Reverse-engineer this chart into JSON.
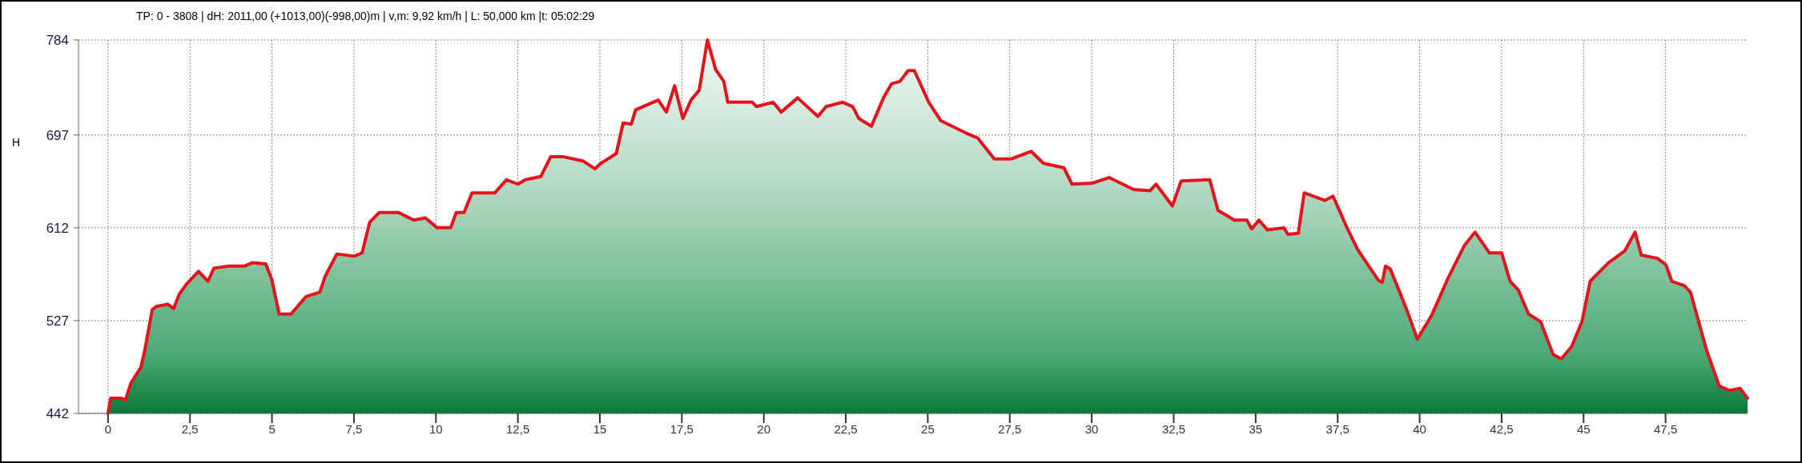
{
  "chart_data": {
    "type": "area",
    "title": "TP: 0 - 3808 | dH: 2011,00  (+1013,00)(-998,00)m | v,m: 9,92 km/h | L: 50,000 km |t: 05:02:29",
    "ylabel": "H",
    "xlim": [
      -0.9,
      50
    ],
    "ylim": [
      442,
      784
    ],
    "xticks": [
      0,
      {
        "value": 2.5,
        "label": "2,5"
      },
      5,
      {
        "value": 7.5,
        "label": "7,5"
      },
      10,
      {
        "value": 12.5,
        "label": "12,5"
      },
      15,
      {
        "value": 17.5,
        "label": "17,5"
      },
      20,
      {
        "value": 22.5,
        "label": "22,5"
      },
      25,
      {
        "value": 27.5,
        "label": "27,5"
      },
      30,
      {
        "value": 32.5,
        "label": "32,5"
      },
      35,
      {
        "value": 37.5,
        "label": "37,5"
      },
      40,
      {
        "value": 42.5,
        "label": "42,5"
      },
      45,
      {
        "value": 47.5,
        "label": "47,5"
      }
    ],
    "yticks": [
      442,
      527,
      612,
      697,
      784
    ],
    "grid": true,
    "series": [
      {
        "color": "#e3141c",
        "x": [
          0,
          0.08,
          0.41,
          0.53,
          0.7,
          1.0,
          1.11,
          1.35,
          1.47,
          1.82,
          2.0,
          2.17,
          2.41,
          2.76,
          3.05,
          3.23,
          3.7,
          4.17,
          4.4,
          4.81,
          4.99,
          5.22,
          5.58,
          6.04,
          6.46,
          6.63,
          6.98,
          7.51,
          7.75,
          7.98,
          8.27,
          8.86,
          9.33,
          9.68,
          10.04,
          10.45,
          10.62,
          10.86,
          11.1,
          11.8,
          12.15,
          12.5,
          12.73,
          13.2,
          13.5,
          13.9,
          14.5,
          14.85,
          15.03,
          15.5,
          15.71,
          15.96,
          16.09,
          16.78,
          17.03,
          17.28,
          17.53,
          17.78,
          18.03,
          18.28,
          18.53,
          18.78,
          18.9,
          19.65,
          19.78,
          20.28,
          20.53,
          21.03,
          21.65,
          21.9,
          22.4,
          22.71,
          22.9,
          23.28,
          23.65,
          23.9,
          24.15,
          24.4,
          24.59,
          25.03,
          25.4,
          26.15,
          26.53,
          27.03,
          27.53,
          28.15,
          28.53,
          29.15,
          29.4,
          30.03,
          30.53,
          31.28,
          31.78,
          31.96,
          32.46,
          32.73,
          33.6,
          33.85,
          34.35,
          34.73,
          34.88,
          35.1,
          35.36,
          35.86,
          35.98,
          36.3,
          36.48,
          37.11,
          37.36,
          37.8,
          38.11,
          38.74,
          38.86,
          38.96,
          39.11,
          39.62,
          39.93,
          40.37,
          40.87,
          41.37,
          41.69,
          42.13,
          42.5,
          42.76,
          43.01,
          43.32,
          43.69,
          44.07,
          44.32,
          44.63,
          44.95,
          45.2,
          45.76,
          46.26,
          46.57,
          46.76,
          47.26,
          47.51,
          47.69,
          48.07,
          48.26,
          48.76,
          49.14,
          49.45,
          49.77,
          50
        ],
        "values": [
          442,
          456,
          456,
          454,
          470,
          484,
          498,
          537,
          540,
          542,
          538,
          551,
          561,
          572,
          563,
          575,
          577,
          577,
          580,
          579,
          565,
          533,
          533,
          549,
          553,
          568,
          588,
          586,
          589,
          617,
          626,
          626,
          619,
          621,
          612,
          612,
          626,
          626,
          644,
          644,
          656,
          652,
          656,
          659,
          677,
          677,
          673,
          666,
          671,
          680,
          708,
          707,
          720,
          729,
          718,
          742,
          712,
          729,
          738,
          784,
          757,
          746,
          727,
          727,
          723,
          727,
          718,
          731,
          714,
          723,
          727,
          723,
          712,
          705,
          731,
          744,
          746,
          756,
          756,
          727,
          710,
          699,
          694,
          675,
          675,
          682,
          671,
          667,
          652,
          653,
          658,
          647,
          646,
          652,
          632,
          655,
          656,
          628,
          619,
          619,
          611,
          619,
          610,
          612,
          606,
          607,
          644,
          637,
          641,
          611,
          592,
          564,
          562,
          577,
          574,
          536,
          510,
          532,
          566,
          596,
          608,
          589,
          589,
          563,
          555,
          533,
          526,
          496,
          492,
          503,
          526,
          563,
          580,
          591,
          608,
          587,
          584,
          578,
          563,
          559,
          553,
          499,
          467,
          463,
          465,
          456
        ]
      }
    ]
  }
}
